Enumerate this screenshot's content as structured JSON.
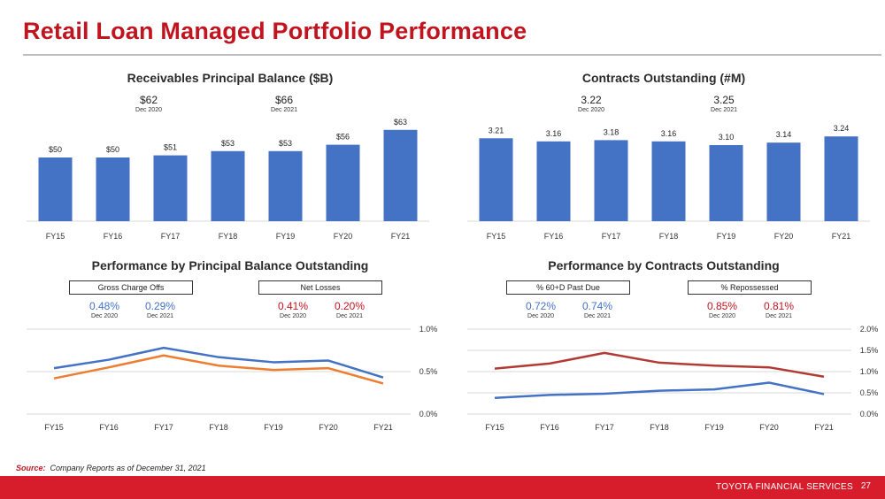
{
  "page": {
    "title": "Retail Loan Managed Portfolio Performance",
    "source_label": "Source:",
    "source_text": "Company Reports as of December 31, 2021",
    "footer": "TOYOTA FINANCIAL SERVICES",
    "page_number": "27"
  },
  "colors": {
    "blue": "#4472c4",
    "red": "#c0151f",
    "orange": "#ed7d31",
    "darkred": "#b23a35"
  },
  "chart_data": [
    {
      "type": "bar",
      "title": "Receivables Principal Balance ($B)",
      "categories": [
        "FY15",
        "FY16",
        "FY17",
        "FY18",
        "FY19",
        "FY20",
        "FY21"
      ],
      "values": [
        50,
        50,
        51,
        53,
        53,
        56,
        63
      ],
      "labels": [
        "$50",
        "$50",
        "$51",
        "$53",
        "$53",
        "$56",
        "$63"
      ],
      "annotations": [
        {
          "value": "$62",
          "date": "Dec 2020"
        },
        {
          "value": "$66",
          "date": "Dec 2021"
        }
      ]
    },
    {
      "type": "bar",
      "title": "Contracts Outstanding (#M)",
      "categories": [
        "FY15",
        "FY16",
        "FY17",
        "FY18",
        "FY19",
        "FY20",
        "FY21"
      ],
      "values": [
        3.21,
        3.16,
        3.18,
        3.16,
        3.1,
        3.14,
        3.24
      ],
      "labels": [
        "3.21",
        "3.16",
        "3.18",
        "3.16",
        "3.10",
        "3.14",
        "3.24"
      ],
      "annotations": [
        {
          "value": "3.22",
          "date": "Dec 2020"
        },
        {
          "value": "3.25",
          "date": "Dec 2021"
        }
      ]
    },
    {
      "type": "line",
      "title": "Performance by  Principal Balance Outstanding",
      "categories": [
        "FY15",
        "FY16",
        "FY17",
        "FY18",
        "FY19",
        "FY20",
        "FY21"
      ],
      "ylim": [
        0,
        1.0
      ],
      "yticks": [
        "0.0%",
        "0.5%",
        "1.0%"
      ],
      "series": [
        {
          "name": "Gross Charge Offs",
          "values": [
            0.54,
            0.64,
            0.78,
            0.67,
            0.61,
            0.63,
            0.43
          ]
        },
        {
          "name": "Net Losses",
          "values": [
            0.42,
            0.55,
            0.69,
            0.57,
            0.52,
            0.54,
            0.36
          ]
        }
      ],
      "callouts": [
        {
          "label": "Gross Charge Offs",
          "stats": [
            {
              "value": "0.48%",
              "date": "Dec 2020"
            },
            {
              "value": "0.29%",
              "date": "Dec 2021"
            }
          ]
        },
        {
          "label": "Net Losses",
          "stats": [
            {
              "value": "0.41%",
              "date": "Dec 2020"
            },
            {
              "value": "0.20%",
              "date": "Dec 2021"
            }
          ]
        }
      ]
    },
    {
      "type": "line",
      "title": "Performance by  Contracts Outstanding",
      "categories": [
        "FY15",
        "FY16",
        "FY17",
        "FY18",
        "FY19",
        "FY20",
        "FY21"
      ],
      "ylim": [
        0,
        2.0
      ],
      "yticks": [
        "0.0%",
        "0.5%",
        "1.0%",
        "1.5%",
        "2.0%"
      ],
      "series": [
        {
          "name": "% 60+D Past Due",
          "values": [
            0.38,
            0.45,
            0.48,
            0.55,
            0.58,
            0.74,
            0.47
          ]
        },
        {
          "name": "% Repossessed",
          "values": [
            1.07,
            1.19,
            1.44,
            1.21,
            1.14,
            1.1,
            0.88
          ]
        }
      ],
      "callouts": [
        {
          "label": "% 60+D Past Due",
          "stats": [
            {
              "value": "0.72%",
              "date": "Dec 2020"
            },
            {
              "value": "0.74%",
              "date": "Dec 2021"
            }
          ]
        },
        {
          "label": "% Repossessed",
          "stats": [
            {
              "value": "0.85%",
              "date": "Dec 2020"
            },
            {
              "value": "0.81%",
              "date": "Dec 2021"
            }
          ]
        }
      ]
    }
  ]
}
